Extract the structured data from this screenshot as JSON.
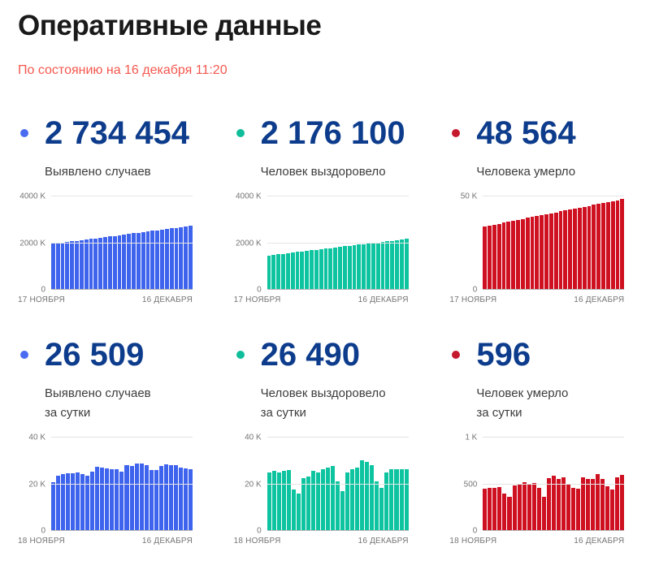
{
  "header": {
    "title": "Оперативные данные",
    "subtitle": "По состоянию на 16 декабря 11:20"
  },
  "colors": {
    "value_text": "#0d3c8c",
    "subtitle_text": "#f4584e",
    "bar_blue": "#3e63ed",
    "bar_green": "#0ec4a0",
    "bar_red": "#ce1021"
  },
  "cards": [
    {
      "value": "2 734 454",
      "label_line1": "Выявлено случаев",
      "label_line2": "",
      "dot_color": "#4a6cf0"
    },
    {
      "value": "2 176 100",
      "label_line1": "Человек выздоровело",
      "label_line2": "",
      "dot_color": "#10bd9b"
    },
    {
      "value": "48 564",
      "label_line1": "Человека умерло",
      "label_line2": "",
      "dot_color": "#c5192d"
    },
    {
      "value": "26 509",
      "label_line1": "Выявлено случаев",
      "label_line2": "за сутки",
      "dot_color": "#4a6cf0"
    },
    {
      "value": "26 490",
      "label_line1": "Человек выздоровело",
      "label_line2": "за сутки",
      "dot_color": "#10bd9b"
    },
    {
      "value": "596",
      "label_line1": "Человек умерло",
      "label_line2": "за сутки",
      "dot_color": "#c5192d"
    }
  ],
  "chart_data": [
    {
      "type": "bar",
      "name": "confirmed-cumulative",
      "unit": "thousands",
      "color": "#3e63ed",
      "ylim": [
        0,
        4000
      ],
      "y_ticks": [
        {
          "value": 4000,
          "label": "4000 K"
        },
        {
          "value": 2000,
          "label": "2000 K"
        },
        {
          "value": 0,
          "label": "0"
        }
      ],
      "x_labels": [
        "17 НОЯБРЯ",
        "16 ДЕКАБРЯ"
      ],
      "values": [
        1971,
        1997,
        2024,
        2050,
        2076,
        2103,
        2129,
        2155,
        2182,
        2208,
        2234,
        2261,
        2287,
        2313,
        2340,
        2366,
        2392,
        2419,
        2445,
        2471,
        2498,
        2524,
        2550,
        2577,
        2603,
        2629,
        2656,
        2682,
        2708,
        2734
      ]
    },
    {
      "type": "bar",
      "name": "recovered-cumulative",
      "unit": "thousands",
      "color": "#0ec4a0",
      "ylim": [
        0,
        4000
      ],
      "y_ticks": [
        {
          "value": 4000,
          "label": "4000 K"
        },
        {
          "value": 2000,
          "label": "2000 K"
        },
        {
          "value": 0,
          "label": "0"
        }
      ],
      "x_labels": [
        "17 НОЯБРЯ",
        "16 ДЕКАБРЯ"
      ],
      "values": [
        1476,
        1500,
        1524,
        1548,
        1572,
        1597,
        1621,
        1645,
        1669,
        1693,
        1717,
        1741,
        1766,
        1790,
        1814,
        1838,
        1862,
        1886,
        1910,
        1934,
        1959,
        1983,
        2007,
        2031,
        2055,
        2079,
        2103,
        2128,
        2152,
        2176
      ]
    },
    {
      "type": "bar",
      "name": "deaths-cumulative",
      "unit": "thousands",
      "color": "#ce1021",
      "ylim": [
        0,
        50
      ],
      "y_ticks": [
        {
          "value": 50,
          "label": "50 K"
        },
        {
          "value": 0,
          "label": "0"
        }
      ],
      "x_labels": [
        "17 НОЯБРЯ",
        "16 ДЕКАБРЯ"
      ],
      "values": [
        33.9,
        34.4,
        34.9,
        35.4,
        35.9,
        36.4,
        36.9,
        37.5,
        38.0,
        38.5,
        39.0,
        39.5,
        40.0,
        40.5,
        41.0,
        41.5,
        42.0,
        42.5,
        43.0,
        43.5,
        44.0,
        44.5,
        45.0,
        45.5,
        46.0,
        46.5,
        47.0,
        47.5,
        48.0,
        48.6
      ]
    },
    {
      "type": "bar",
      "name": "confirmed-daily",
      "unit": "thousands",
      "color": "#3e63ed",
      "ylim": [
        0,
        40
      ],
      "y_ticks": [
        {
          "value": 40,
          "label": "40 K"
        },
        {
          "value": 20,
          "label": "20 K"
        },
        {
          "value": 0,
          "label": "0"
        }
      ],
      "x_labels": [
        "18 НОЯБРЯ",
        "16 ДЕКАБРЯ"
      ],
      "values": [
        20.9,
        23.6,
        24.3,
        24.8,
        24.6,
        25.2,
        24.3,
        23.7,
        25.5,
        27.5,
        27.1,
        26.7,
        26.3,
        26.4,
        25.3,
        28.1,
        27.7,
        28.8,
        29.0,
        28.1,
        26.1,
        26.2,
        27.9,
        28.6,
        28.1,
        28.1,
        27.3,
        26.7,
        26.5
      ]
    },
    {
      "type": "bar",
      "name": "recovered-daily",
      "unit": "thousands",
      "color": "#0ec4a0",
      "ylim": [
        0,
        40
      ],
      "y_ticks": [
        {
          "value": 40,
          "label": "40 K"
        },
        {
          "value": 20,
          "label": "20 K"
        },
        {
          "value": 0,
          "label": "0"
        }
      ],
      "x_labels": [
        "18 НОЯБРЯ",
        "16 ДЕКАБРЯ"
      ],
      "values": [
        25.1,
        25.6,
        24.9,
        25.6,
        26.1,
        17.8,
        15.9,
        22.7,
        23.2,
        25.9,
        24.9,
        26.3,
        27.1,
        27.7,
        21.1,
        17.0,
        25.1,
        26.6,
        27.2,
        30.1,
        29.6,
        28.3,
        21.3,
        18.6,
        24.9,
        26.4,
        26.5,
        26.6,
        26.5
      ]
    },
    {
      "type": "bar",
      "name": "deaths-daily",
      "unit": "count",
      "color": "#ce1021",
      "ylim": [
        0,
        1000
      ],
      "y_ticks": [
        {
          "value": 1000,
          "label": "1 K"
        },
        {
          "value": 500,
          "label": "500"
        },
        {
          "value": 0,
          "label": "0"
        }
      ],
      "x_labels": [
        "18 НОЯБРЯ",
        "16 ДЕКАБРЯ"
      ],
      "values": [
        456,
        463,
        461,
        467,
        401,
        368,
        491,
        507,
        524,
        496,
        510,
        459,
        368,
        569,
        589,
        554,
        574,
        508,
        457,
        456,
        570,
        559,
        560,
        613,
        557,
        480,
        443,
        577,
        596
      ]
    }
  ]
}
